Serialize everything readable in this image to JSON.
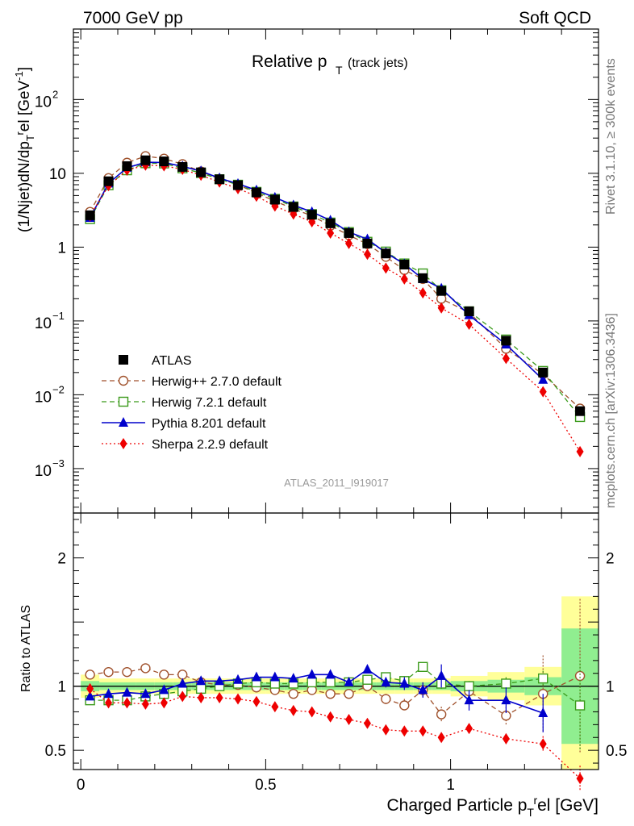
{
  "header": {
    "left": "7000 GeV pp",
    "right": "Soft QCD"
  },
  "side_texts": {
    "rivet": "Rivet 3.1.10, ≥ 300k events",
    "mcplots": "mcplots.cern.ch [arXiv:1306.3436]"
  },
  "chart_data": [
    {
      "panel": "main",
      "type": "scatter",
      "title": "Relative p_T (track jets)",
      "title_main": "Relative p",
      "title_sub": "T",
      "title_suffix": "(track jets)",
      "ylabel": "(1/Njet)dN/dp_T^rel [GeV^-1]",
      "y_scale": "log",
      "ylim": [
        0.00025,
        900
      ],
      "xlim": [
        -0.02,
        1.4
      ],
      "yticks": [
        {
          "value": 0.001,
          "base": "10",
          "exp": "−3"
        },
        {
          "value": 0.01,
          "base": "10",
          "exp": "−2"
        },
        {
          "value": 0.1,
          "base": "10",
          "exp": "−1"
        },
        {
          "value": 1,
          "text": "1"
        },
        {
          "value": 10,
          "text": "10"
        },
        {
          "value": 100,
          "base": "10",
          "exp": "2"
        }
      ],
      "watermark": "ATLAS_2011_I919017",
      "x": [
        0.025,
        0.075,
        0.125,
        0.175,
        0.225,
        0.275,
        0.325,
        0.375,
        0.425,
        0.475,
        0.525,
        0.575,
        0.625,
        0.675,
        0.725,
        0.775,
        0.825,
        0.875,
        0.925,
        0.975,
        1.05,
        1.15,
        1.25,
        1.35
      ],
      "series": [
        {
          "name": "ATLAS",
          "color": "#000000",
          "marker": "square-filled",
          "line": "none",
          "values": [
            2.7,
            7.8,
            12.5,
            15.0,
            14.5,
            12.2,
            10.3,
            8.3,
            6.9,
            5.5,
            4.4,
            3.5,
            2.75,
            2.1,
            1.55,
            1.12,
            0.82,
            0.58,
            0.38,
            0.255,
            0.135,
            0.054,
            0.02,
            0.006
          ]
        },
        {
          "name": "Herwig++ 2.7.0 default",
          "color": "#a0522d",
          "marker": "circle-open",
          "line": "dashed",
          "values": [
            3.0,
            8.6,
            13.9,
            17.1,
            15.8,
            13.3,
            10.6,
            8.4,
            7.0,
            5.4,
            4.2,
            3.3,
            2.65,
            1.95,
            1.45,
            1.1,
            0.74,
            0.49,
            0.37,
            0.2,
            0.13,
            0.042,
            0.019,
            0.0065
          ]
        },
        {
          "name": "Herwig 7.2.1 default",
          "color": "#3a9a1a",
          "marker": "square-open",
          "line": "dashed",
          "values": [
            2.4,
            6.9,
            11.0,
            13.7,
            13.6,
            11.7,
            10.1,
            8.3,
            7.0,
            5.6,
            4.5,
            3.55,
            2.8,
            2.15,
            1.6,
            1.18,
            0.87,
            0.6,
            0.44,
            0.26,
            0.135,
            0.056,
            0.021,
            0.005
          ]
        },
        {
          "name": "Pythia 8.201 default",
          "color": "#0000cc",
          "marker": "triangle-filled",
          "line": "solid",
          "values": [
            2.5,
            7.3,
            11.9,
            14.1,
            14.0,
            12.4,
            10.7,
            8.6,
            7.2,
            5.9,
            4.7,
            3.7,
            3.0,
            2.3,
            1.6,
            1.28,
            0.84,
            0.59,
            0.37,
            0.275,
            0.12,
            0.048,
            0.016
          ]
        },
        {
          "name": "Sherpa 2.2.9 default",
          "color": "#ee0000",
          "marker": "diamond-filled",
          "line": "dotted",
          "values": [
            2.65,
            6.8,
            11.0,
            12.9,
            12.6,
            11.3,
            9.4,
            7.6,
            6.2,
            4.9,
            3.6,
            2.8,
            2.2,
            1.55,
            1.12,
            0.8,
            0.52,
            0.37,
            0.24,
            0.15,
            0.09,
            0.031,
            0.011,
            0.0017
          ]
        }
      ]
    },
    {
      "panel": "ratio",
      "type": "scatter",
      "ylabel": "Ratio to ATLAS",
      "xlabel": "Charged Particle p_T^rel [GeV]",
      "ylim": [
        0.35,
        2.35
      ],
      "xlim": [
        -0.02,
        1.4
      ],
      "xticks": [
        {
          "value": 0,
          "text": "0"
        },
        {
          "value": 0.5,
          "text": "0.5"
        },
        {
          "value": 1,
          "text": "1"
        }
      ],
      "yticks": [
        {
          "value": 0.5,
          "text": "0.5"
        },
        {
          "value": 1,
          "text": "1"
        },
        {
          "value": 2,
          "text": "2"
        }
      ],
      "bands": {
        "x_edges": [
          0,
          0.05,
          0.1,
          0.15,
          0.2,
          0.25,
          0.3,
          0.35,
          0.4,
          0.45,
          0.5,
          0.55,
          0.6,
          0.65,
          0.7,
          0.75,
          0.8,
          0.85,
          0.9,
          0.95,
          1.0,
          1.1,
          1.2,
          1.3,
          1.4
        ],
        "stat_half_width": [
          0.04,
          0.03,
          0.03,
          0.03,
          0.03,
          0.03,
          0.03,
          0.03,
          0.03,
          0.03,
          0.03,
          0.03,
          0.03,
          0.03,
          0.03,
          0.03,
          0.03,
          0.03,
          0.03,
          0.03,
          0.04,
          0.05,
          0.07,
          0.45
        ],
        "total_half_width": [
          0.09,
          0.06,
          0.06,
          0.06,
          0.06,
          0.06,
          0.06,
          0.06,
          0.06,
          0.06,
          0.06,
          0.06,
          0.06,
          0.06,
          0.06,
          0.06,
          0.06,
          0.06,
          0.06,
          0.06,
          0.08,
          0.11,
          0.15,
          0.7
        ],
        "stat_color": "#90ee90",
        "total_color": "#ffff99"
      },
      "series": [
        {
          "name": "Herwig++ 2.7.0 default",
          "color": "#a0522d",
          "marker": "circle-open",
          "line": "dashed",
          "values": [
            1.09,
            1.11,
            1.11,
            1.14,
            1.09,
            1.09,
            1.03,
            1.01,
            1.01,
            0.99,
            0.97,
            0.94,
            0.97,
            0.94,
            0.94,
            1.0,
            0.9,
            0.85,
            0.97,
            0.78,
            0.96,
            0.77,
            0.94,
            1.08
          ],
          "errors": [
            0.02,
            0.02,
            0.02,
            0.02,
            0.02,
            0.02,
            0.02,
            0.02,
            0.02,
            0.02,
            0.02,
            0.02,
            0.02,
            0.03,
            0.03,
            0.03,
            0.04,
            0.05,
            0.06,
            0.06,
            0.06,
            0.07,
            0.3,
            0.6
          ]
        },
        {
          "name": "Herwig 7.2.1 default",
          "color": "#3a9a1a",
          "marker": "square-open",
          "line": "dashed",
          "values": [
            0.89,
            0.89,
            0.89,
            0.92,
            0.94,
            0.96,
            0.98,
            1.0,
            1.02,
            1.03,
            1.02,
            1.02,
            1.03,
            1.03,
            1.03,
            1.05,
            1.07,
            1.04,
            1.15,
            1.02,
            1.0,
            1.02,
            1.06,
            0.85
          ],
          "errors": [
            0.01,
            0.01,
            0.01,
            0.01,
            0.01,
            0.01,
            0.01,
            0.01,
            0.01,
            0.01,
            0.01,
            0.01,
            0.01,
            0.01,
            0.02,
            0.02,
            0.02,
            0.03,
            0.03,
            0.04,
            0.04,
            0.05,
            0.06,
            0.35
          ]
        },
        {
          "name": "Pythia 8.201 default",
          "color": "#0000cc",
          "marker": "triangle-filled",
          "line": "solid",
          "values": [
            0.92,
            0.94,
            0.95,
            0.94,
            0.97,
            1.02,
            1.04,
            1.04,
            1.05,
            1.07,
            1.07,
            1.06,
            1.09,
            1.09,
            1.03,
            1.13,
            1.03,
            1.02,
            0.97,
            1.08,
            0.89,
            0.89,
            0.79
          ],
          "errors": [
            0.01,
            0.01,
            0.01,
            0.01,
            0.01,
            0.01,
            0.01,
            0.01,
            0.01,
            0.01,
            0.02,
            0.02,
            0.02,
            0.02,
            0.03,
            0.03,
            0.04,
            0.05,
            0.06,
            0.09,
            0.08,
            0.1,
            0.15
          ]
        },
        {
          "name": "Sherpa 2.2.9 default",
          "color": "#ee0000",
          "marker": "diamond-filled",
          "line": "dotted",
          "values": [
            0.98,
            0.87,
            0.87,
            0.86,
            0.87,
            0.92,
            0.91,
            0.91,
            0.9,
            0.88,
            0.84,
            0.81,
            0.8,
            0.76,
            0.74,
            0.71,
            0.66,
            0.65,
            0.65,
            0.6,
            0.67,
            0.59,
            0.55,
            0.28
          ],
          "errors": [
            0.01,
            0.01,
            0.01,
            0.01,
            0.01,
            0.01,
            0.01,
            0.01,
            0.01,
            0.01,
            0.01,
            0.01,
            0.01,
            0.01,
            0.01,
            0.02,
            0.02,
            0.02,
            0.02,
            0.03,
            0.03,
            0.04,
            0.06,
            0.1
          ]
        }
      ]
    }
  ]
}
